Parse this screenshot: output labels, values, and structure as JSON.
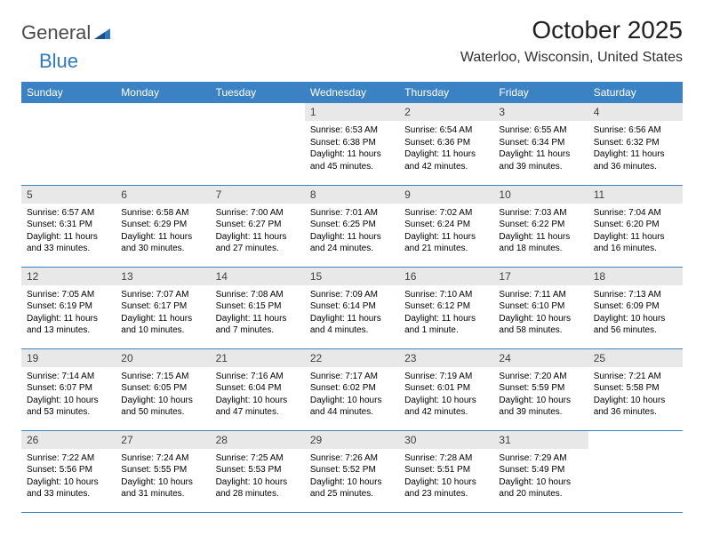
{
  "logo": {
    "general": "General",
    "blue": "Blue"
  },
  "header": {
    "title": "October 2025",
    "location": "Waterloo, Wisconsin, United States"
  },
  "colors": {
    "header_bg": "#3b82c4",
    "header_text": "#ffffff",
    "daynum_bg": "#e8e8e8",
    "border": "#3b82c4",
    "page_bg": "#ffffff",
    "body_text": "#000000",
    "logo_gray": "#4a4a4a",
    "logo_blue": "#2f78c4"
  },
  "days_of_week": [
    "Sunday",
    "Monday",
    "Tuesday",
    "Wednesday",
    "Thursday",
    "Friday",
    "Saturday"
  ],
  "weeks": [
    [
      {
        "n": "",
        "sr": "",
        "ss": "",
        "dl": ""
      },
      {
        "n": "",
        "sr": "",
        "ss": "",
        "dl": ""
      },
      {
        "n": "",
        "sr": "",
        "ss": "",
        "dl": ""
      },
      {
        "n": "1",
        "sr": "Sunrise: 6:53 AM",
        "ss": "Sunset: 6:38 PM",
        "dl": "Daylight: 11 hours and 45 minutes."
      },
      {
        "n": "2",
        "sr": "Sunrise: 6:54 AM",
        "ss": "Sunset: 6:36 PM",
        "dl": "Daylight: 11 hours and 42 minutes."
      },
      {
        "n": "3",
        "sr": "Sunrise: 6:55 AM",
        "ss": "Sunset: 6:34 PM",
        "dl": "Daylight: 11 hours and 39 minutes."
      },
      {
        "n": "4",
        "sr": "Sunrise: 6:56 AM",
        "ss": "Sunset: 6:32 PM",
        "dl": "Daylight: 11 hours and 36 minutes."
      }
    ],
    [
      {
        "n": "5",
        "sr": "Sunrise: 6:57 AM",
        "ss": "Sunset: 6:31 PM",
        "dl": "Daylight: 11 hours and 33 minutes."
      },
      {
        "n": "6",
        "sr": "Sunrise: 6:58 AM",
        "ss": "Sunset: 6:29 PM",
        "dl": "Daylight: 11 hours and 30 minutes."
      },
      {
        "n": "7",
        "sr": "Sunrise: 7:00 AM",
        "ss": "Sunset: 6:27 PM",
        "dl": "Daylight: 11 hours and 27 minutes."
      },
      {
        "n": "8",
        "sr": "Sunrise: 7:01 AM",
        "ss": "Sunset: 6:25 PM",
        "dl": "Daylight: 11 hours and 24 minutes."
      },
      {
        "n": "9",
        "sr": "Sunrise: 7:02 AM",
        "ss": "Sunset: 6:24 PM",
        "dl": "Daylight: 11 hours and 21 minutes."
      },
      {
        "n": "10",
        "sr": "Sunrise: 7:03 AM",
        "ss": "Sunset: 6:22 PM",
        "dl": "Daylight: 11 hours and 18 minutes."
      },
      {
        "n": "11",
        "sr": "Sunrise: 7:04 AM",
        "ss": "Sunset: 6:20 PM",
        "dl": "Daylight: 11 hours and 16 minutes."
      }
    ],
    [
      {
        "n": "12",
        "sr": "Sunrise: 7:05 AM",
        "ss": "Sunset: 6:19 PM",
        "dl": "Daylight: 11 hours and 13 minutes."
      },
      {
        "n": "13",
        "sr": "Sunrise: 7:07 AM",
        "ss": "Sunset: 6:17 PM",
        "dl": "Daylight: 11 hours and 10 minutes."
      },
      {
        "n": "14",
        "sr": "Sunrise: 7:08 AM",
        "ss": "Sunset: 6:15 PM",
        "dl": "Daylight: 11 hours and 7 minutes."
      },
      {
        "n": "15",
        "sr": "Sunrise: 7:09 AM",
        "ss": "Sunset: 6:14 PM",
        "dl": "Daylight: 11 hours and 4 minutes."
      },
      {
        "n": "16",
        "sr": "Sunrise: 7:10 AM",
        "ss": "Sunset: 6:12 PM",
        "dl": "Daylight: 11 hours and 1 minute."
      },
      {
        "n": "17",
        "sr": "Sunrise: 7:11 AM",
        "ss": "Sunset: 6:10 PM",
        "dl": "Daylight: 10 hours and 58 minutes."
      },
      {
        "n": "18",
        "sr": "Sunrise: 7:13 AM",
        "ss": "Sunset: 6:09 PM",
        "dl": "Daylight: 10 hours and 56 minutes."
      }
    ],
    [
      {
        "n": "19",
        "sr": "Sunrise: 7:14 AM",
        "ss": "Sunset: 6:07 PM",
        "dl": "Daylight: 10 hours and 53 minutes."
      },
      {
        "n": "20",
        "sr": "Sunrise: 7:15 AM",
        "ss": "Sunset: 6:05 PM",
        "dl": "Daylight: 10 hours and 50 minutes."
      },
      {
        "n": "21",
        "sr": "Sunrise: 7:16 AM",
        "ss": "Sunset: 6:04 PM",
        "dl": "Daylight: 10 hours and 47 minutes."
      },
      {
        "n": "22",
        "sr": "Sunrise: 7:17 AM",
        "ss": "Sunset: 6:02 PM",
        "dl": "Daylight: 10 hours and 44 minutes."
      },
      {
        "n": "23",
        "sr": "Sunrise: 7:19 AM",
        "ss": "Sunset: 6:01 PM",
        "dl": "Daylight: 10 hours and 42 minutes."
      },
      {
        "n": "24",
        "sr": "Sunrise: 7:20 AM",
        "ss": "Sunset: 5:59 PM",
        "dl": "Daylight: 10 hours and 39 minutes."
      },
      {
        "n": "25",
        "sr": "Sunrise: 7:21 AM",
        "ss": "Sunset: 5:58 PM",
        "dl": "Daylight: 10 hours and 36 minutes."
      }
    ],
    [
      {
        "n": "26",
        "sr": "Sunrise: 7:22 AM",
        "ss": "Sunset: 5:56 PM",
        "dl": "Daylight: 10 hours and 33 minutes."
      },
      {
        "n": "27",
        "sr": "Sunrise: 7:24 AM",
        "ss": "Sunset: 5:55 PM",
        "dl": "Daylight: 10 hours and 31 minutes."
      },
      {
        "n": "28",
        "sr": "Sunrise: 7:25 AM",
        "ss": "Sunset: 5:53 PM",
        "dl": "Daylight: 10 hours and 28 minutes."
      },
      {
        "n": "29",
        "sr": "Sunrise: 7:26 AM",
        "ss": "Sunset: 5:52 PM",
        "dl": "Daylight: 10 hours and 25 minutes."
      },
      {
        "n": "30",
        "sr": "Sunrise: 7:28 AM",
        "ss": "Sunset: 5:51 PM",
        "dl": "Daylight: 10 hours and 23 minutes."
      },
      {
        "n": "31",
        "sr": "Sunrise: 7:29 AM",
        "ss": "Sunset: 5:49 PM",
        "dl": "Daylight: 10 hours and 20 minutes."
      },
      {
        "n": "",
        "sr": "",
        "ss": "",
        "dl": ""
      }
    ]
  ]
}
